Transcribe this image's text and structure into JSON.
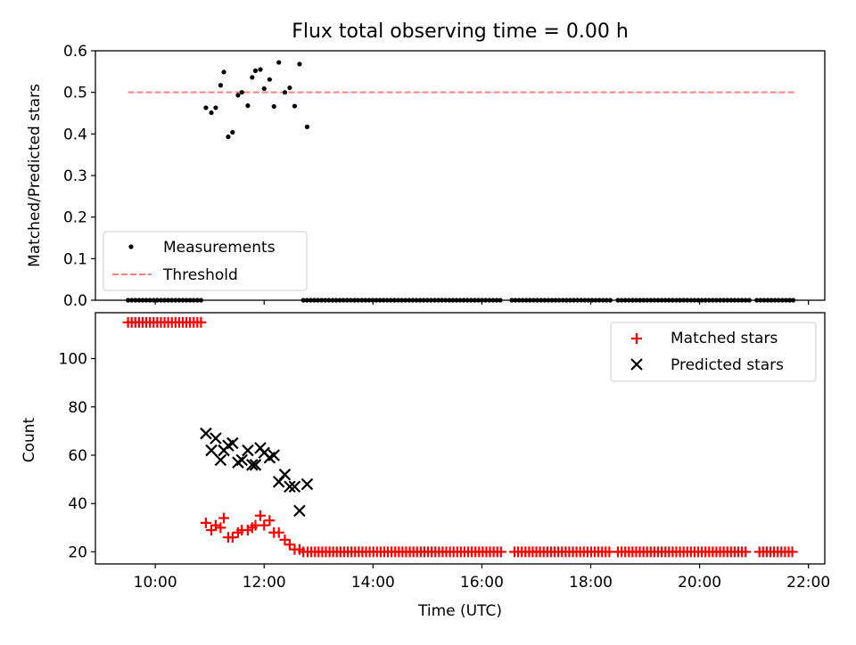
{
  "chart_data": [
    {
      "type": "scatter",
      "title": "Flux total observing time = 0.00 h",
      "xlabel": "",
      "ylabel": "Matched/Predicted stars",
      "xlim": [
        8.9,
        22.3
      ],
      "ylim": [
        0,
        0.6
      ],
      "yticks": [
        0.0,
        0.1,
        0.2,
        0.3,
        0.4,
        0.5,
        0.6
      ],
      "ytick_labels": [
        "0.0",
        "0.1",
        "0.2",
        "0.3",
        "0.4",
        "0.5",
        "0.6"
      ],
      "xticks": [
        10,
        12,
        14,
        16,
        18,
        20,
        22
      ],
      "legend": {
        "position": "bottom-left",
        "entries": [
          "Measurements",
          "Threshold"
        ]
      },
      "threshold": {
        "name": "Threshold",
        "y": 0.5,
        "x_start": 9.5,
        "x_end": 21.75,
        "color": "#ff7f7f"
      },
      "measurements": {
        "name": "Measurements",
        "color": "#000000",
        "zero_segments": [
          [
            9.5,
            10.9,
            0.067
          ],
          [
            12.72,
            16.4,
            0.067
          ],
          [
            16.55,
            18.4,
            0.067
          ],
          [
            18.5,
            20.95,
            0.067
          ],
          [
            21.05,
            21.75,
            0.067
          ]
        ],
        "x": [
          10.93,
          11.03,
          11.11,
          11.2,
          11.26,
          11.34,
          11.42,
          11.52,
          11.59,
          11.7,
          11.78,
          11.84,
          11.93,
          12.0,
          12.1,
          12.18,
          12.27,
          12.38,
          12.47,
          12.56,
          12.65,
          12.79
        ],
        "y": [
          0.463,
          0.451,
          0.463,
          0.517,
          0.549,
          0.393,
          0.404,
          0.493,
          0.5,
          0.468,
          0.536,
          0.552,
          0.555,
          0.509,
          0.531,
          0.466,
          0.572,
          0.5,
          0.511,
          0.467,
          0.568,
          0.417
        ]
      }
    },
    {
      "type": "scatter",
      "title": "",
      "xlabel": "Time (UTC)",
      "ylabel": "Count",
      "xlim": [
        8.9,
        22.3
      ],
      "ylim": [
        15,
        119
      ],
      "yticks": [
        20,
        40,
        60,
        80,
        100
      ],
      "ytick_labels": [
        "20",
        "40",
        "60",
        "80",
        "100"
      ],
      "xticks": [
        10,
        12,
        14,
        16,
        18,
        20,
        22
      ],
      "xtick_labels": [
        "10:00",
        "12:00",
        "14:00",
        "16:00",
        "18:00",
        "20:00",
        "22:00"
      ],
      "legend": {
        "position": "top-right",
        "entries": [
          "Matched stars",
          "Predicted stars"
        ]
      },
      "matched_stars": {
        "name": "Matched stars",
        "color": "#ff0000",
        "runs": [
          {
            "x_start": 9.5,
            "x_end": 10.9,
            "step": 0.067,
            "y": 115
          },
          {
            "x_start": 12.8,
            "x_end": 16.4,
            "step": 0.067,
            "y": 20
          },
          {
            "x_start": 16.6,
            "x_end": 18.4,
            "step": 0.067,
            "y": 20
          },
          {
            "x_start": 18.5,
            "x_end": 20.9,
            "step": 0.067,
            "y": 20
          },
          {
            "x_start": 21.1,
            "x_end": 21.75,
            "step": 0.067,
            "y": 20
          }
        ],
        "x": [
          10.93,
          11.03,
          11.11,
          11.2,
          11.26,
          11.34,
          11.42,
          11.52,
          11.59,
          11.7,
          11.78,
          11.84,
          11.93,
          12.0,
          12.1,
          12.18,
          12.27,
          12.38,
          12.47,
          12.56,
          12.65,
          12.72
        ],
        "y": [
          32,
          29,
          31,
          30,
          34,
          26,
          26,
          28,
          29,
          29,
          30,
          31,
          35,
          31,
          33,
          28,
          28,
          25,
          23,
          21,
          21,
          20
        ]
      },
      "predicted_stars": {
        "name": "Predicted stars",
        "color": "#000000",
        "x": [
          10.93,
          11.03,
          11.11,
          11.2,
          11.26,
          11.34,
          11.42,
          11.52,
          11.59,
          11.7,
          11.78,
          11.84,
          11.93,
          12.0,
          12.1,
          12.18,
          12.27,
          12.38,
          12.47,
          12.56,
          12.65,
          12.79
        ],
        "y": [
          69,
          62,
          67,
          58,
          62,
          64,
          65,
          57,
          58,
          62,
          56,
          56,
          63,
          61,
          59,
          60,
          49,
          52,
          47,
          47,
          37,
          48
        ]
      }
    }
  ]
}
